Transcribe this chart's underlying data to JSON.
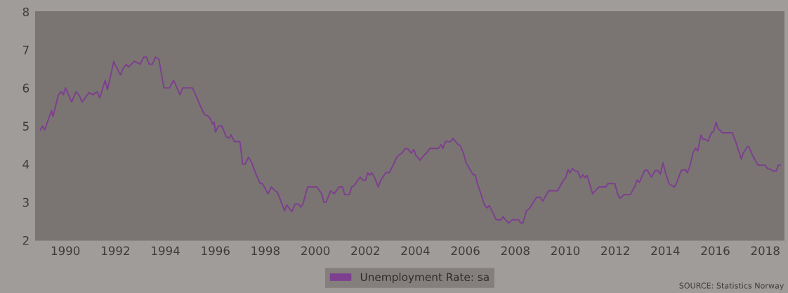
{
  "chart_data": {
    "type": "line",
    "xlim": [
      1988.8,
      2018.75
    ],
    "xticks": [
      1990,
      1992,
      1994,
      1996,
      1998,
      2000,
      2002,
      2004,
      2006,
      2008,
      2010,
      2012,
      2014,
      2016,
      2018
    ],
    "ylim": [
      2,
      8
    ],
    "yticks": [
      2,
      3,
      4,
      5,
      6,
      7,
      8
    ],
    "grid": false,
    "legend": "bottom",
    "marker": "none",
    "line_style": "solid",
    "annotations": [
      "SOURCE: Statistics Norway"
    ],
    "series": [
      {
        "name": "Unemployment Rate: sa",
        "color": "#7d3f8e",
        "x": [
          1989.0,
          1989.08,
          1989.17,
          1989.44,
          1989.5,
          1989.72,
          1989.83,
          1989.92,
          1990.0,
          1990.25,
          1990.42,
          1990.55,
          1990.67,
          1990.95,
          1991.1,
          1991.26,
          1991.37,
          1991.59,
          1991.68,
          1991.93,
          1992.2,
          1992.3,
          1992.43,
          1992.52,
          1992.76,
          1992.9,
          1992.99,
          1993.13,
          1993.24,
          1993.35,
          1993.48,
          1993.6,
          1993.74,
          1993.94,
          1994.16,
          1994.33,
          1994.46,
          1994.58,
          1994.69,
          1995.08,
          1995.22,
          1995.42,
          1995.56,
          1995.68,
          1995.78,
          1995.89,
          1995.95,
          1996.0,
          1996.12,
          1996.26,
          1996.42,
          1996.54,
          1996.62,
          1996.76,
          1996.98,
          1997.09,
          1997.19,
          1997.32,
          1997.46,
          1997.6,
          1997.79,
          1997.88,
          1998.1,
          1998.24,
          1998.38,
          1998.48,
          1998.77,
          1998.85,
          1999.05,
          1999.19,
          1999.33,
          1999.41,
          1999.5,
          1999.69,
          2000.06,
          2000.25,
          2000.34,
          2000.43,
          2000.61,
          2000.75,
          2000.95,
          2001.08,
          2001.17,
          2001.36,
          2001.45,
          2001.54,
          2001.79,
          2001.89,
          2002.01,
          2002.09,
          2002.17,
          2002.26,
          2002.38,
          2002.51,
          2002.62,
          2002.82,
          2002.96,
          2003.13,
          2003.27,
          2003.46,
          2003.6,
          2003.7,
          2003.83,
          2003.94,
          2004.02,
          2004.19,
          2004.3,
          2004.44,
          2004.58,
          2004.92,
          2005.03,
          2005.1,
          2005.2,
          2005.42,
          2005.5,
          2005.7,
          2005.8,
          2005.92,
          2006.03,
          2006.31,
          2006.4,
          2006.48,
          2006.62,
          2006.76,
          2006.87,
          2006.96,
          2007.23,
          2007.43,
          2007.51,
          2007.6,
          2007.74,
          2007.88,
          2008.13,
          2008.21,
          2008.3,
          2008.44,
          2008.58,
          2008.85,
          2008.99,
          2009.1,
          2009.33,
          2009.69,
          2009.94,
          2010.01,
          2010.11,
          2010.18,
          2010.28,
          2010.4,
          2010.5,
          2010.6,
          2010.7,
          2010.78,
          2010.87,
          2011.09,
          2011.34,
          2011.62,
          2011.7,
          2011.98,
          2012.1,
          2012.2,
          2012.35,
          2012.6,
          2012.77,
          2012.87,
          2012.96,
          2013.18,
          2013.28,
          2013.44,
          2013.6,
          2013.7,
          2013.8,
          2013.91,
          2014.03,
          2014.16,
          2014.28,
          2014.36,
          2014.46,
          2014.64,
          2014.72,
          2014.8,
          2014.88,
          2014.97,
          2015.11,
          2015.2,
          2015.3,
          2015.42,
          2015.51,
          2015.61,
          2015.71,
          2015.84,
          2015.93,
          2016.03,
          2016.12,
          2016.21,
          2016.28,
          2016.68,
          2016.82,
          2017.04,
          2017.11,
          2017.29,
          2017.34,
          2017.49,
          2017.71,
          2017.99,
          2018.1,
          2018.2,
          2018.3,
          2018.44,
          2018.52,
          2018.6
        ],
        "values": [
          4.9,
          5.0,
          4.9,
          5.4,
          5.25,
          5.82,
          5.9,
          5.82,
          6.0,
          5.63,
          5.9,
          5.8,
          5.63,
          5.88,
          5.82,
          5.9,
          5.74,
          6.2,
          5.95,
          6.69,
          6.34,
          6.5,
          6.62,
          6.55,
          6.7,
          6.65,
          6.62,
          6.81,
          6.81,
          6.62,
          6.62,
          6.81,
          6.75,
          6.0,
          6.0,
          6.2,
          6.0,
          5.82,
          6.0,
          6.0,
          5.8,
          5.49,
          5.3,
          5.27,
          5.2,
          5.05,
          5.1,
          4.84,
          5.0,
          5.0,
          4.73,
          4.68,
          4.77,
          4.59,
          4.59,
          4.0,
          4.0,
          4.18,
          4.03,
          3.77,
          3.49,
          3.49,
          3.22,
          3.4,
          3.3,
          3.26,
          2.77,
          2.93,
          2.75,
          2.95,
          2.95,
          2.87,
          2.95,
          3.4,
          3.4,
          3.22,
          3.0,
          3.0,
          3.3,
          3.22,
          3.4,
          3.4,
          3.2,
          3.2,
          3.4,
          3.43,
          3.66,
          3.58,
          3.58,
          3.77,
          3.71,
          3.77,
          3.63,
          3.4,
          3.58,
          3.78,
          3.78,
          4.0,
          4.2,
          4.29,
          4.41,
          4.4,
          4.29,
          4.38,
          4.23,
          4.1,
          4.2,
          4.29,
          4.41,
          4.41,
          4.51,
          4.41,
          4.59,
          4.59,
          4.68,
          4.52,
          4.48,
          4.29,
          4.03,
          3.72,
          3.72,
          3.49,
          3.22,
          2.93,
          2.85,
          2.91,
          2.54,
          2.54,
          2.62,
          2.54,
          2.45,
          2.54,
          2.54,
          2.45,
          2.45,
          2.77,
          2.85,
          3.13,
          3.13,
          3.03,
          3.3,
          3.3,
          3.6,
          3.63,
          3.86,
          3.77,
          3.88,
          3.82,
          3.8,
          3.64,
          3.72,
          3.64,
          3.7,
          3.22,
          3.4,
          3.4,
          3.49,
          3.49,
          3.19,
          3.1,
          3.2,
          3.2,
          3.4,
          3.58,
          3.52,
          3.84,
          3.84,
          3.66,
          3.83,
          3.83,
          3.74,
          4.03,
          3.72,
          3.47,
          3.43,
          3.4,
          3.52,
          3.84,
          3.84,
          3.86,
          3.77,
          3.92,
          4.3,
          4.41,
          4.35,
          4.76,
          4.65,
          4.65,
          4.6,
          4.82,
          4.85,
          5.1,
          4.92,
          4.88,
          4.82,
          4.82,
          4.58,
          4.13,
          4.28,
          4.46,
          4.46,
          4.23,
          3.97,
          3.97,
          3.87,
          3.87,
          3.82,
          3.82,
          3.97,
          3.97
        ]
      }
    ]
  }
}
